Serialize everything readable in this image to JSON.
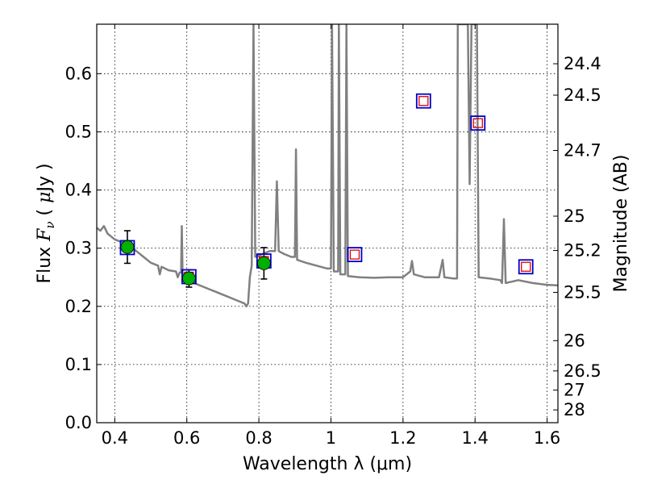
{
  "chart_data": {
    "type": "scatter",
    "xlabel": "Wavelength  λ (μm)",
    "ylabel": "Flux  F_ν  ( μJy )",
    "ylabel_parts": [
      "Flux  ",
      "F",
      "ν",
      "  ( ",
      "μ",
      "Jy )"
    ],
    "y2label": "Magnitude (AB)",
    "xlim": [
      0.35,
      1.63
    ],
    "ylim": [
      0.0,
      0.685
    ],
    "grid": true,
    "x_ticks": [
      0.4,
      0.6,
      0.8,
      1.0,
      1.2,
      1.4,
      1.6
    ],
    "x_tick_labels": [
      "0.4",
      "0.6",
      "0.8",
      "1",
      "1.2",
      "1.4",
      "1.6"
    ],
    "y_ticks": [
      0.0,
      0.1,
      0.2,
      0.3,
      0.4,
      0.5,
      0.6
    ],
    "y_tick_labels": [
      "0.0",
      "0.1",
      "0.2",
      "0.3",
      "0.4",
      "0.5",
      "0.6"
    ],
    "y2_tick_labels": [
      "24.4",
      "24.5",
      "24.7",
      "25",
      "25.2",
      "25.5",
      "26",
      "26.5",
      "27",
      "28"
    ],
    "y2_tick_flux": [
      0.617,
      0.563,
      0.468,
      0.355,
      0.296,
      0.224,
      0.141,
      0.089,
      0.056,
      0.022
    ],
    "colors": {
      "model": "#808080",
      "observed_fill": "#00b000",
      "model_box_outer": "#0000cc",
      "model_box_inner": "#e00000",
      "errorbar": "#000000"
    },
    "series": [
      {
        "role": "model spectrum",
        "points": [
          [
            0.35,
            0.335
          ],
          [
            0.36,
            0.33
          ],
          [
            0.37,
            0.338
          ],
          [
            0.38,
            0.325
          ],
          [
            0.39,
            0.32
          ],
          [
            0.4,
            0.315
          ],
          [
            0.42,
            0.31
          ],
          [
            0.44,
            0.305
          ],
          [
            0.46,
            0.295
          ],
          [
            0.48,
            0.285
          ],
          [
            0.5,
            0.275
          ],
          [
            0.52,
            0.27
          ],
          [
            0.525,
            0.255
          ],
          [
            0.53,
            0.268
          ],
          [
            0.55,
            0.262
          ],
          [
            0.57,
            0.26
          ],
          [
            0.575,
            0.25
          ],
          [
            0.58,
            0.258
          ],
          [
            0.584,
            0.258
          ],
          [
            0.586,
            0.338
          ],
          [
            0.588,
            0.258
          ],
          [
            0.6,
            0.245
          ],
          [
            0.62,
            0.24
          ],
          [
            0.64,
            0.235
          ],
          [
            0.66,
            0.23
          ],
          [
            0.68,
            0.225
          ],
          [
            0.7,
            0.22
          ],
          [
            0.72,
            0.215
          ],
          [
            0.74,
            0.21
          ],
          [
            0.76,
            0.205
          ],
          [
            0.765,
            0.2
          ],
          [
            0.77,
            0.205
          ],
          [
            0.775,
            0.25
          ],
          [
            0.78,
            0.27
          ],
          [
            0.785,
            0.685
          ],
          [
            0.79,
            0.285
          ],
          [
            0.81,
            0.29
          ],
          [
            0.83,
            0.295
          ],
          [
            0.845,
            0.295
          ],
          [
            0.85,
            0.415
          ],
          [
            0.855,
            0.295
          ],
          [
            0.87,
            0.29
          ],
          [
            0.89,
            0.285
          ],
          [
            0.9,
            0.285
          ],
          [
            0.903,
            0.47
          ],
          [
            0.906,
            0.28
          ],
          [
            0.93,
            0.275
          ],
          [
            0.96,
            0.27
          ],
          [
            0.99,
            0.265
          ],
          [
            1.0,
            0.265
          ],
          [
            1.003,
            0.685
          ],
          [
            1.008,
            0.26
          ],
          [
            1.02,
            0.26
          ],
          [
            1.022,
            0.685
          ],
          [
            1.026,
            0.255
          ],
          [
            1.04,
            0.255
          ],
          [
            1.043,
            0.685
          ],
          [
            1.047,
            0.252
          ],
          [
            1.08,
            0.25
          ],
          [
            1.12,
            0.249
          ],
          [
            1.16,
            0.25
          ],
          [
            1.2,
            0.25
          ],
          [
            1.22,
            0.26
          ],
          [
            1.225,
            0.278
          ],
          [
            1.23,
            0.255
          ],
          [
            1.26,
            0.25
          ],
          [
            1.3,
            0.25
          ],
          [
            1.31,
            0.28
          ],
          [
            1.315,
            0.25
          ],
          [
            1.34,
            0.248
          ],
          [
            1.35,
            0.248
          ],
          [
            1.352,
            0.685
          ],
          [
            1.38,
            0.685
          ],
          [
            1.385,
            0.41
          ],
          [
            1.39,
            0.685
          ],
          [
            1.405,
            0.685
          ],
          [
            1.41,
            0.25
          ],
          [
            1.44,
            0.248
          ],
          [
            1.47,
            0.245
          ],
          [
            1.475,
            0.24
          ],
          [
            1.48,
            0.35
          ],
          [
            1.485,
            0.24
          ],
          [
            1.52,
            0.245
          ],
          [
            1.56,
            0.24
          ],
          [
            1.6,
            0.237
          ],
          [
            1.63,
            0.236
          ]
        ]
      },
      {
        "role": "observed fluxes",
        "points": [
          {
            "x": 0.435,
            "y": 0.302,
            "err": 0.028
          },
          {
            "x": 0.606,
            "y": 0.248,
            "err": 0.015
          },
          {
            "x": 0.814,
            "y": 0.274,
            "err": 0.027
          }
        ]
      },
      {
        "role": "model fluxes",
        "points": [
          {
            "x": 0.435,
            "y": 0.301
          },
          {
            "x": 0.606,
            "y": 0.251
          },
          {
            "x": 0.814,
            "y": 0.278
          },
          {
            "x": 1.066,
            "y": 0.289
          },
          {
            "x": 1.257,
            "y": 0.553
          },
          {
            "x": 1.408,
            "y": 0.515
          },
          {
            "x": 1.541,
            "y": 0.268
          }
        ]
      }
    ]
  }
}
